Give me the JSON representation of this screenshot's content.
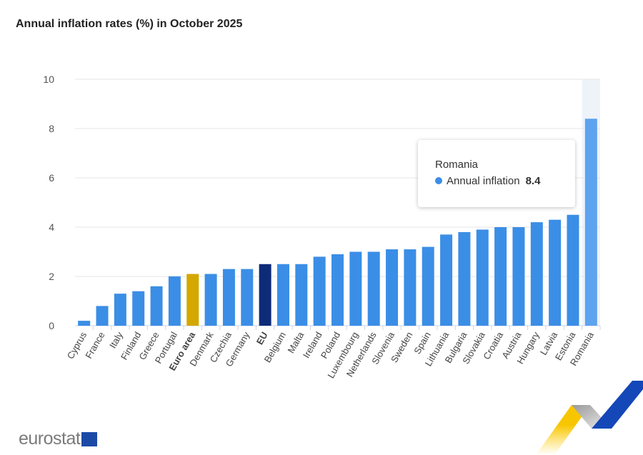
{
  "chart_data": {
    "type": "bar",
    "title": "Annual inflation rates (%) in October 2025",
    "categories": [
      "Cyprus",
      "France",
      "Italy",
      "Finland",
      "Greece",
      "Portugal",
      "Euro area",
      "Denmark",
      "Czechia",
      "Germany",
      "EU",
      "Belgium",
      "Malta",
      "Ireland",
      "Poland",
      "Luxembourg",
      "Netherlands",
      "Slovenia",
      "Sweden",
      "Spain",
      "Lithuania",
      "Bulgaria",
      "Slovakia",
      "Croatia",
      "Austria",
      "Hungary",
      "Latvia",
      "Estonia",
      "Romania"
    ],
    "series": [
      {
        "name": "Annual inflation",
        "values": [
          0.2,
          0.8,
          1.3,
          1.4,
          1.6,
          2.0,
          2.1,
          2.1,
          2.3,
          2.3,
          2.5,
          2.5,
          2.5,
          2.8,
          2.9,
          3.0,
          3.0,
          3.1,
          3.1,
          3.2,
          3.7,
          3.8,
          3.9,
          4.0,
          4.0,
          4.2,
          4.3,
          4.5,
          8.4
        ]
      }
    ],
    "bold_categories": [
      "Euro area",
      "EU"
    ],
    "ylim": [
      0,
      10
    ],
    "yticks": [
      0,
      2,
      4,
      6,
      8,
      10
    ],
    "grid": true,
    "colors": {
      "default": "#3b8ee6",
      "Euro area": "#d4a800",
      "EU": "#0d2b78",
      "highlight": "#5ea3ef"
    }
  },
  "tooltip": {
    "country": "Romania",
    "series": "Annual inflation",
    "value": "8.4"
  },
  "logo": {
    "text": "eurostat"
  }
}
